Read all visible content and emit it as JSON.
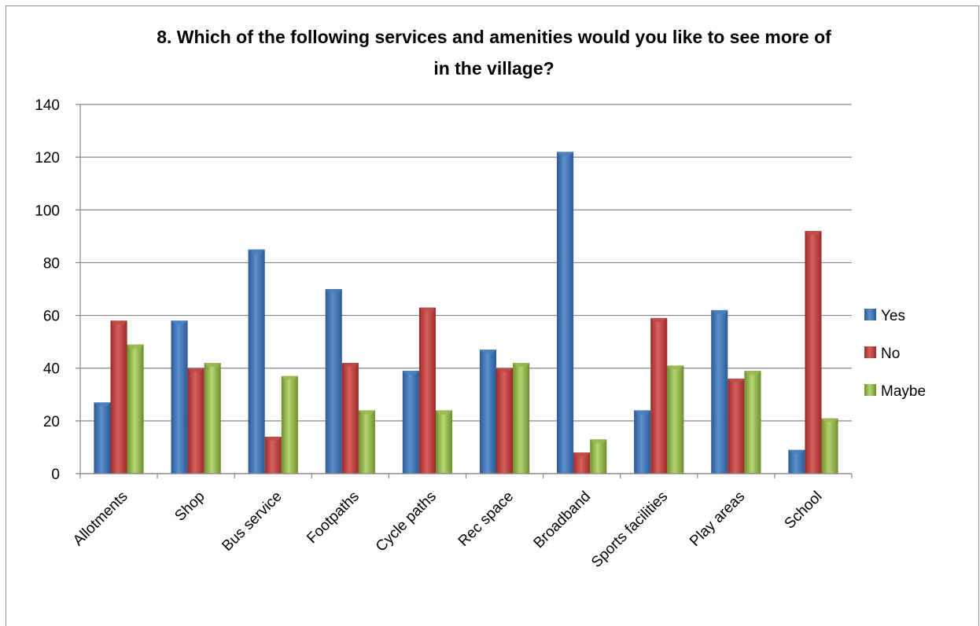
{
  "chart_data": {
    "type": "bar",
    "title": "8. Which of the following services and amenities would you like to see more of in the village?",
    "title_lines": [
      "8. Which of the following services and amenities would you like to see more of",
      "in the village?"
    ],
    "categories": [
      "Allotments",
      "Shop",
      "Bus service",
      "Footpaths",
      "Cycle paths",
      "Rec space",
      "Broadband",
      "Sports facilities",
      "Play areas",
      "School"
    ],
    "series": [
      {
        "name": "Yes",
        "color": "#4a7ebb",
        "values": [
          27,
          58,
          85,
          70,
          39,
          47,
          122,
          24,
          62,
          9
        ]
      },
      {
        "name": "No",
        "color": "#be4b48",
        "values": [
          58,
          40,
          14,
          42,
          63,
          40,
          8,
          59,
          36,
          92
        ]
      },
      {
        "name": "Maybe",
        "color": "#98b954",
        "values": [
          49,
          42,
          37,
          24,
          24,
          42,
          13,
          41,
          39,
          21
        ]
      }
    ],
    "ylim": [
      0,
      140
    ],
    "yticks": [
      0,
      20,
      40,
      60,
      80,
      100,
      120,
      140
    ],
    "xlabel": "",
    "ylabel": "",
    "grid": true,
    "legend_position": "right"
  }
}
